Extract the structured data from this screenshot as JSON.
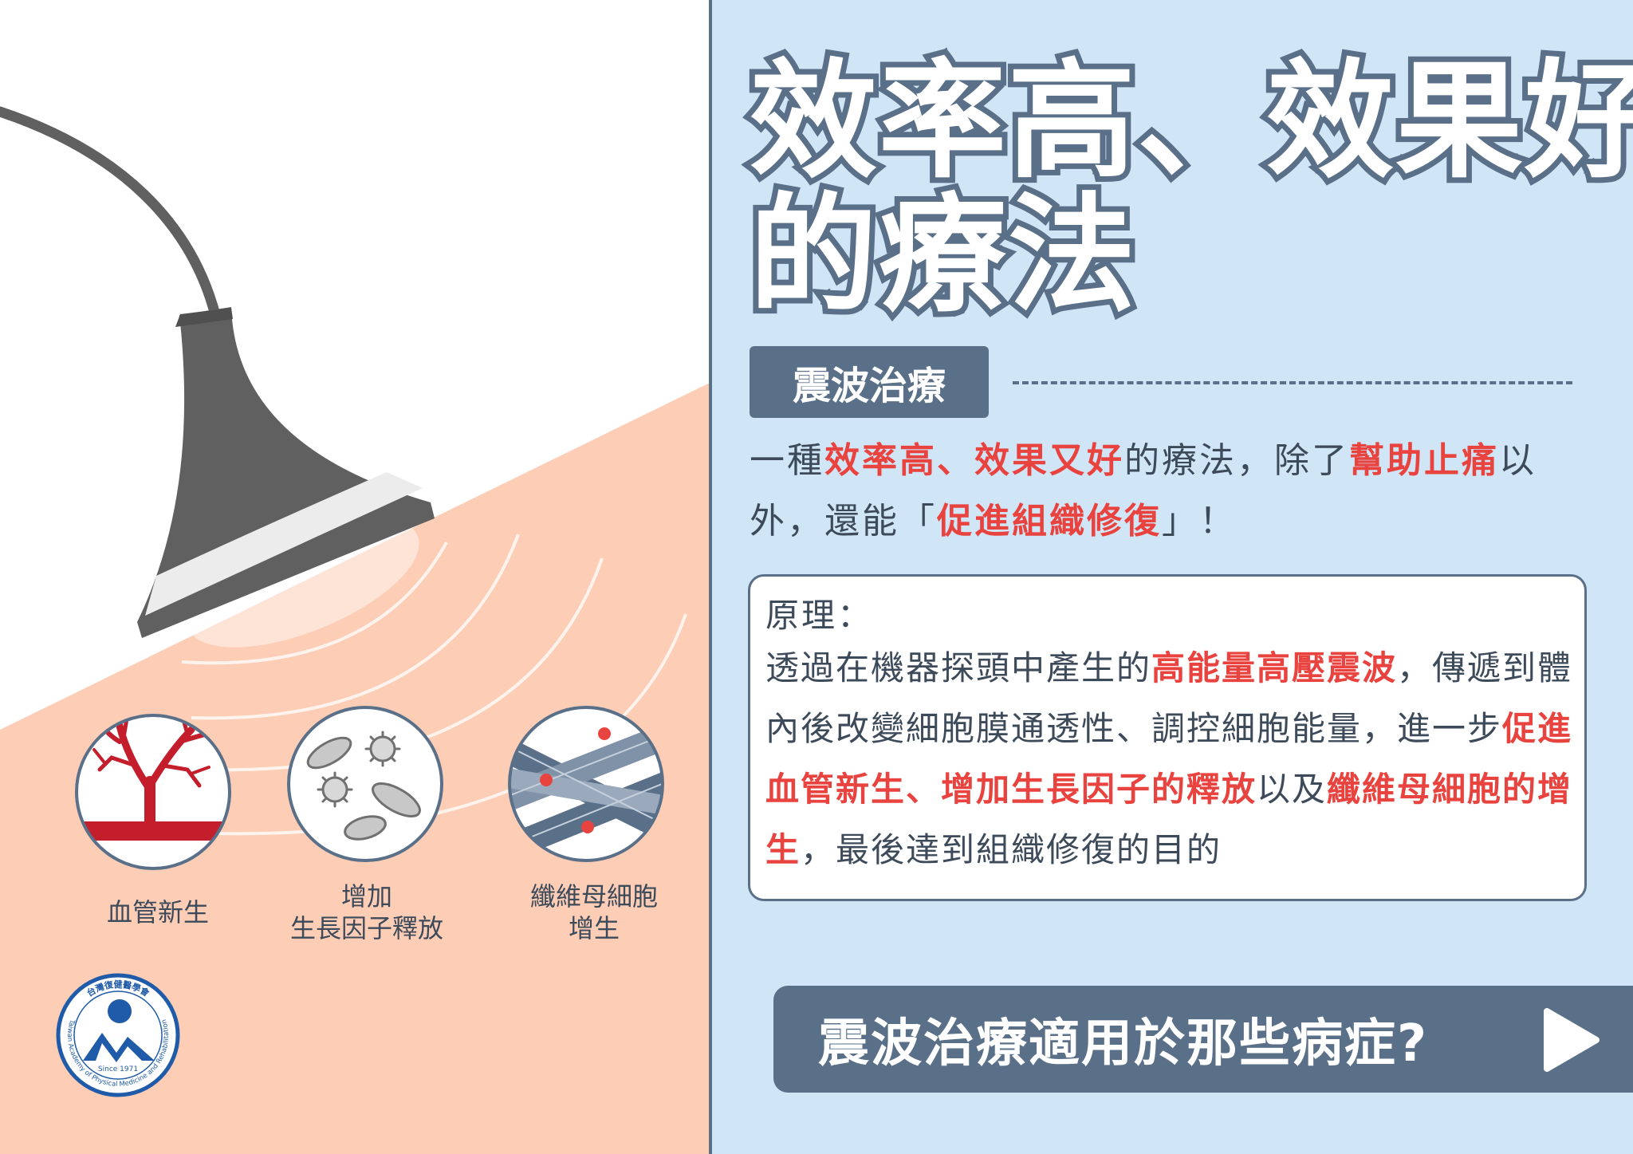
{
  "title": {
    "line1": "效率高、效果好",
    "line2": "的療法"
  },
  "section_tag": "震波治療",
  "intro": {
    "p1": "一種",
    "h1": "效率高、效果又好",
    "p2": "的療法，除了",
    "h2": "幫助止痛",
    "p3": "以外，還能「",
    "h3": "促進組織修復",
    "p4": "」！"
  },
  "principle": {
    "title": "原理：",
    "t1": "透過在機器探頭中產生的",
    "h1": "高能量高壓震波",
    "t2": "，傳遞到體內後改變細胞膜通透性、調控細胞能量，進一步",
    "h2": "促進血管新生、增加生長因子的釋放",
    "t3": "以及",
    "h3": "纖維母細胞的增生",
    "t4": "，最後達到組織修復的目的"
  },
  "icons": [
    {
      "caption": "血管新生"
    },
    {
      "caption_line1": "增加",
      "caption_line2": "生長因子釋放"
    },
    {
      "caption_line1": "纖維母細胞",
      "caption_line2": "增生"
    }
  ],
  "cta": {
    "label": "震波治療適用於那些病症?"
  },
  "logo": {
    "top_text": "台灣復健醫學會",
    "ring_text": "Taiwan Academy of Physical Medicine and Rehabilitation",
    "since": "Since 1971"
  },
  "colors": {
    "panel_bg": "#d0e6f6",
    "skin": "#fdcdb6",
    "accent_slate": "#5a7089",
    "highlight_red": "#e9433f",
    "device_gray": "#606060",
    "logo_blue": "#1f5ba8"
  }
}
